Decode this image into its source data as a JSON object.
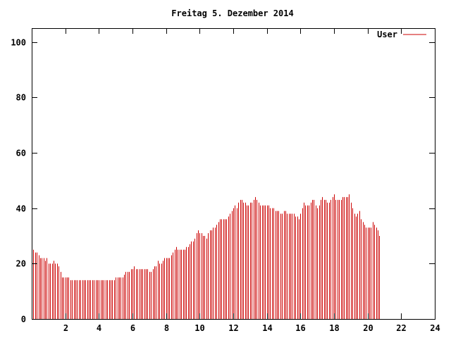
{
  "chart_data": {
    "type": "bar",
    "title": "Freitag 5. Dezember 2014",
    "xlabel": "",
    "ylabel": "",
    "xlim": [
      0,
      24
    ],
    "ylim": [
      0,
      105
    ],
    "x_ticks": [
      2,
      4,
      6,
      8,
      10,
      12,
      14,
      16,
      18,
      20,
      22,
      24
    ],
    "y_ticks": [
      0,
      20,
      40,
      60,
      80,
      100
    ],
    "grid": false,
    "legend_position": "top-right",
    "series": [
      {
        "name": "User",
        "color": "#cc0000",
        "sample_interval_hours": 0.1,
        "values": [
          26,
          25,
          24,
          24,
          23,
          22,
          22,
          22,
          21,
          22,
          20,
          20,
          20,
          21,
          20,
          20,
          19,
          17,
          15,
          15,
          15,
          15,
          15,
          14,
          14,
          14,
          14,
          14,
          14,
          14,
          14,
          14,
          14,
          14,
          14,
          14,
          14,
          14,
          14,
          14,
          14,
          14,
          14,
          14,
          14,
          14,
          14,
          14,
          14,
          14,
          15,
          15,
          15,
          15,
          15,
          16,
          17,
          17,
          17,
          18,
          18,
          19,
          18,
          18,
          18,
          18,
          18,
          18,
          18,
          18,
          17,
          17,
          18,
          19,
          19,
          21,
          20,
          20,
          21,
          22,
          22,
          22,
          22,
          23,
          24,
          25,
          26,
          25,
          25,
          25,
          25,
          25,
          26,
          26,
          27,
          28,
          28,
          29,
          31,
          32,
          31,
          31,
          30,
          30,
          29,
          31,
          32,
          32,
          33,
          33,
          34,
          35,
          36,
          36,
          36,
          36,
          36,
          37,
          38,
          39,
          40,
          41,
          40,
          42,
          43,
          43,
          42,
          42,
          41,
          41,
          42,
          42,
          43,
          44,
          43,
          42,
          41,
          41,
          41,
          41,
          41,
          41,
          40,
          40,
          40,
          39,
          39,
          39,
          38,
          38,
          39,
          39,
          38,
          38,
          38,
          38,
          38,
          37,
          37,
          36,
          38,
          40,
          42,
          41,
          41,
          41,
          42,
          43,
          43,
          41,
          40,
          41,
          43,
          44,
          43,
          43,
          42,
          42,
          43,
          44,
          45,
          43,
          43,
          43,
          43,
          44,
          44,
          44,
          44,
          45,
          42,
          40,
          38,
          37,
          38,
          39,
          36,
          35,
          34,
          33,
          33,
          33,
          33,
          35,
          34,
          33,
          32,
          30
        ]
      }
    ]
  }
}
